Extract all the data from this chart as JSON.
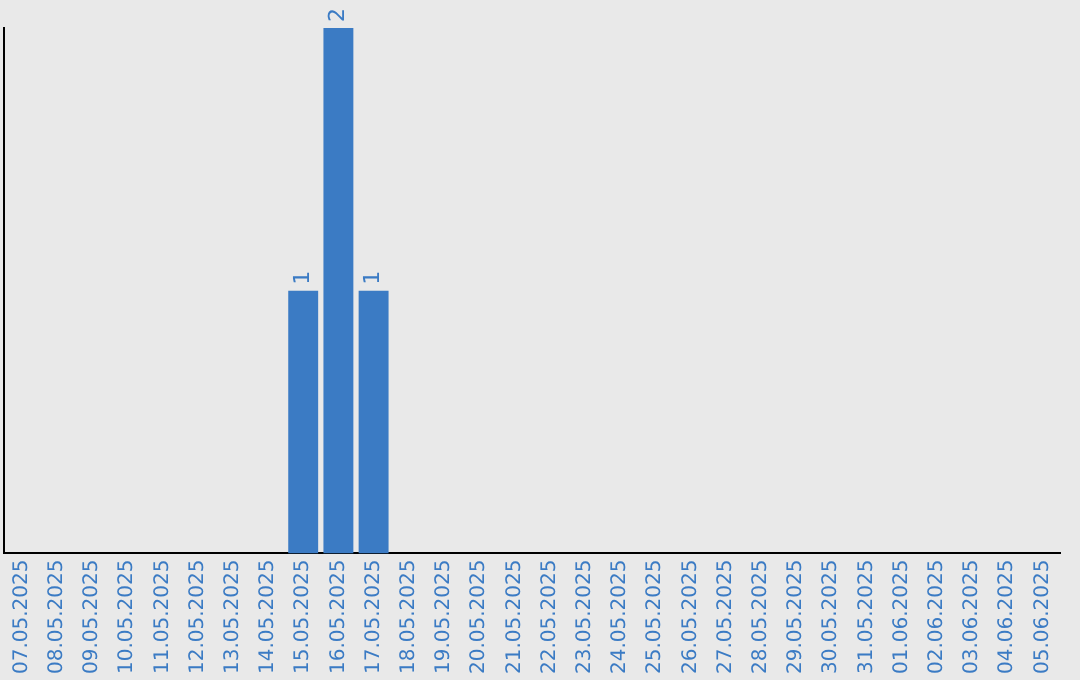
{
  "chart_data": {
    "type": "bar",
    "categories": [
      "07.05.2025",
      "08.05.2025",
      "09.05.2025",
      "10.05.2025",
      "11.05.2025",
      "12.05.2025",
      "13.05.2025",
      "14.05.2025",
      "15.05.2025",
      "16.05.2025",
      "17.05.2025",
      "18.05.2025",
      "19.05.2025",
      "20.05.2025",
      "21.05.2025",
      "22.05.2025",
      "23.05.2025",
      "24.05.2025",
      "25.05.2025",
      "26.05.2025",
      "27.05.2025",
      "28.05.2025",
      "29.05.2025",
      "30.05.2025",
      "31.05.2025",
      "01.06.2025",
      "02.06.2025",
      "03.06.2025",
      "04.06.2025",
      "05.06.2025"
    ],
    "values": [
      0,
      0,
      0,
      0,
      0,
      0,
      0,
      0,
      1,
      2,
      1,
      0,
      0,
      0,
      0,
      0,
      0,
      0,
      0,
      0,
      0,
      0,
      0,
      0,
      0,
      0,
      0,
      0,
      0,
      0
    ],
    "value_labels": [
      null,
      null,
      null,
      null,
      null,
      null,
      null,
      null,
      "1",
      "2",
      "1",
      null,
      null,
      null,
      null,
      null,
      null,
      null,
      null,
      null,
      null,
      null,
      null,
      null,
      null,
      null,
      null,
      null,
      null,
      null
    ],
    "color": "#3b7bc4",
    "tick_labels": "x",
    "grid": false,
    "legend": false
  }
}
